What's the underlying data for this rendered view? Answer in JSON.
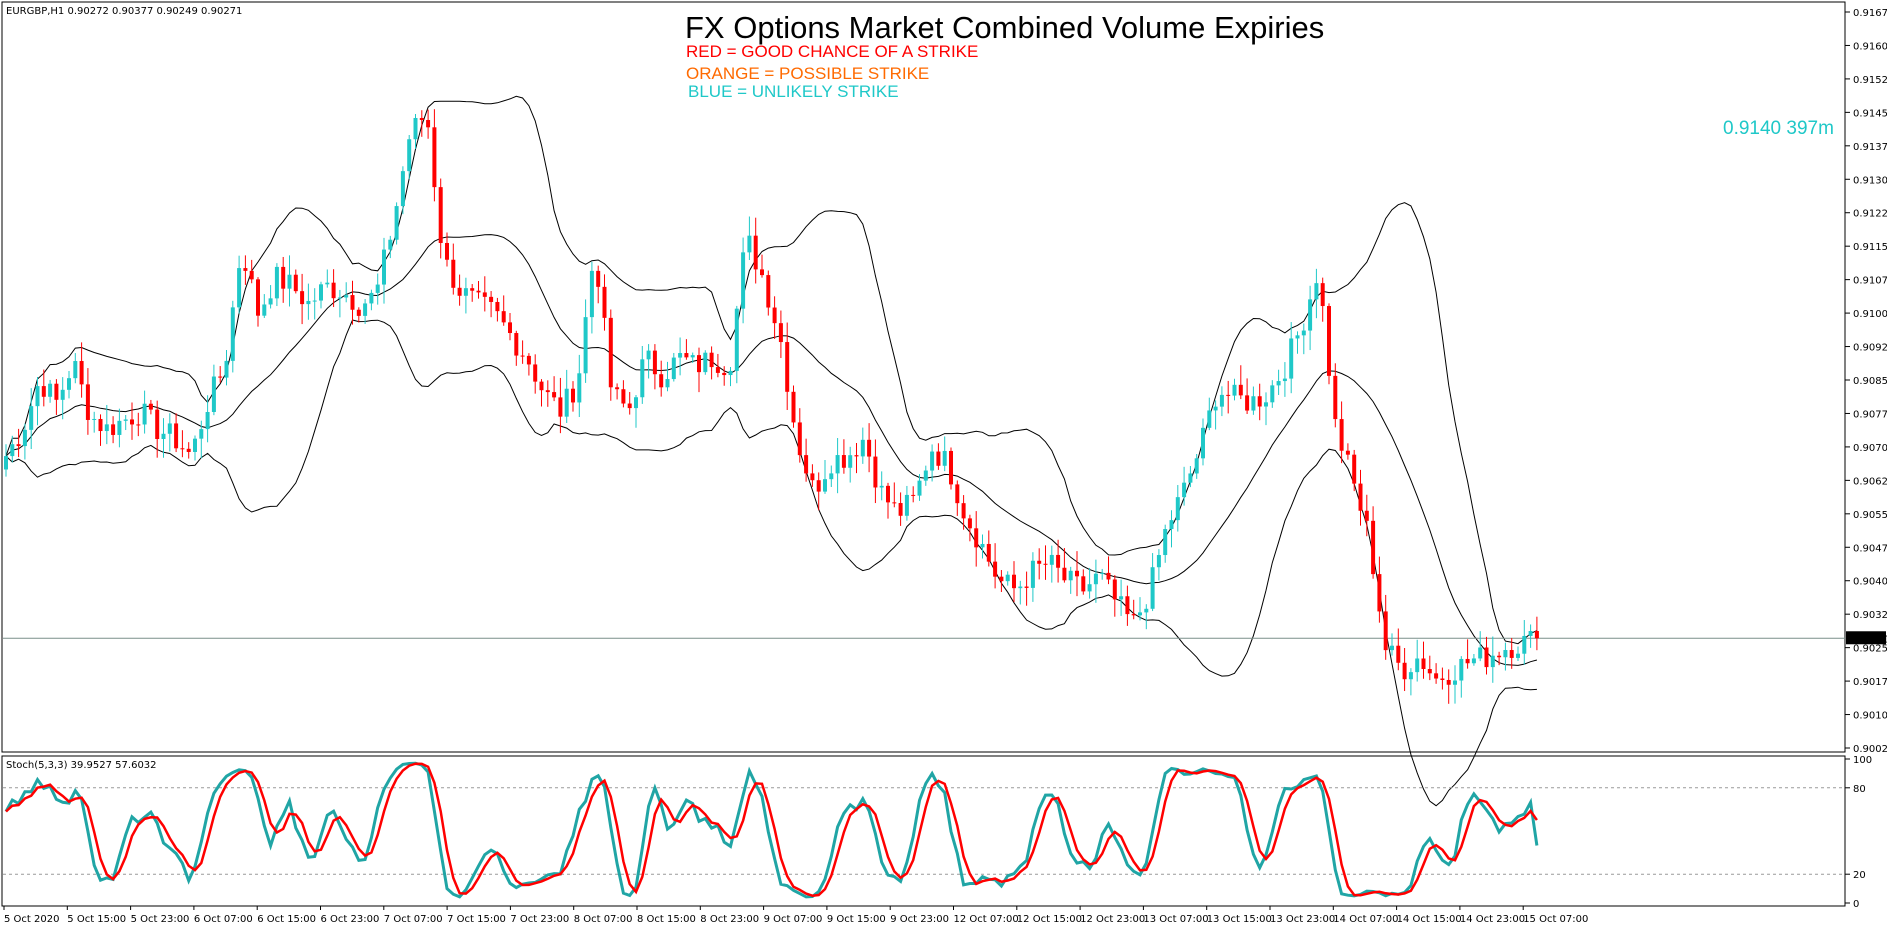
{
  "header": {
    "symbol_info": "EURGBP,H1  0.90272 0.90377 0.90249 0.90271",
    "title": "FX Options Market Combined Volume Expiries",
    "legend": [
      {
        "text": "RED = GOOD CHANCE OF A STRIKE",
        "color": "#ff0000"
      },
      {
        "text": "ORANGE = POSSIBLE STRIKE",
        "color": "#ff6a00"
      },
      {
        "text": "BLUE = UNLIKELY STRIKE",
        "color": "#1fc8c8"
      }
    ]
  },
  "callout": {
    "text": "0.9140 397m",
    "color": "#1fc8c8"
  },
  "current_price": "0.90271",
  "colors": {
    "bull": "#1fc8c8",
    "bear": "#ff0000",
    "band": "#000000",
    "stoch_k": "#20a5a5",
    "stoch_d": "#ff0000"
  },
  "stoch": {
    "label": "Stoch(5,3,3) 39.9527 57.6032",
    "yticks": [
      "100",
      "80",
      "20",
      "0"
    ],
    "levels": [
      80,
      20
    ]
  },
  "chart_data": {
    "type": "candlestick",
    "title": "FX Options Market Combined Volume Expiries",
    "symbol": "EURGBP",
    "timeframe": "H1",
    "ylim": [
      0.90025,
      0.91675
    ],
    "yticks": [
      "0.91675",
      "0.91600",
      "0.91525",
      "0.91450",
      "0.91375",
      "0.91300",
      "0.91225",
      "0.91150",
      "0.91075",
      "0.91000",
      "0.90925",
      "0.90850",
      "0.90775",
      "0.90700",
      "0.90625",
      "0.90550",
      "0.90475",
      "0.90400",
      "0.90325",
      "0.90250",
      "0.90175",
      "0.90100",
      "0.90025"
    ],
    "xticks": [
      "5 Oct 2020",
      "5 Oct 15:00",
      "5 Oct 23:00",
      "6 Oct 07:00",
      "6 Oct 15:00",
      "6 Oct 23:00",
      "7 Oct 07:00",
      "7 Oct 15:00",
      "7 Oct 23:00",
      "8 Oct 07:00",
      "8 Oct 15:00",
      "8 Oct 23:00",
      "9 Oct 07:00",
      "9 Oct 15:00",
      "9 Oct 23:00",
      "12 Oct 07:00",
      "12 Oct 15:00",
      "12 Oct 23:00",
      "13 Oct 07:00",
      "13 Oct 15:00",
      "13 Oct 23:00",
      "14 Oct 07:00",
      "14 Oct 15:00",
      "14 Oct 23:00",
      "15 Oct 07:00"
    ],
    "close_path": [
      0.9068,
      0.9074,
      0.9085,
      0.908,
      0.9089,
      0.9077,
      0.9074,
      0.9076,
      0.9078,
      0.9074,
      0.9072,
      0.9068,
      0.908,
      0.9088,
      0.9115,
      0.91,
      0.9108,
      0.9106,
      0.9102,
      0.9106,
      0.9105,
      0.9102,
      0.9104,
      0.912,
      0.914,
      0.9145,
      0.9112,
      0.9105,
      0.9102,
      0.91,
      0.9095,
      0.909,
      0.9082,
      0.9078,
      0.9085,
      0.9115,
      0.9082,
      0.9078,
      0.909,
      0.9086,
      0.909,
      0.9088,
      0.909,
      0.9088,
      0.9117,
      0.9108,
      0.9095,
      0.9072,
      0.906,
      0.9067,
      0.9068,
      0.9072,
      0.906,
      0.9055,
      0.9058,
      0.907,
      0.9066,
      0.9055,
      0.9048,
      0.904,
      0.9038,
      0.9042,
      0.9044,
      0.904,
      0.9038,
      0.9041,
      0.9035,
      0.903,
      0.9038,
      0.9052,
      0.906,
      0.907,
      0.9083,
      0.9081,
      0.908,
      0.9082,
      0.9088,
      0.9097,
      0.911,
      0.9075,
      0.9063,
      0.905,
      0.9025,
      0.902,
      0.9023,
      0.9018,
      0.902,
      0.9022,
      0.9023,
      0.9025,
      0.9026,
      0.9027
    ],
    "current_price": 0.90271,
    "hline": 0.90271,
    "annotation": {
      "level": 0.914,
      "text": "0.9140 397m"
    },
    "indicator": {
      "name": "Stoch(5,3,3)",
      "k": 39.9527,
      "d": 57.6032,
      "levels": [
        80,
        20
      ],
      "ylim": [
        0,
        100
      ]
    }
  }
}
